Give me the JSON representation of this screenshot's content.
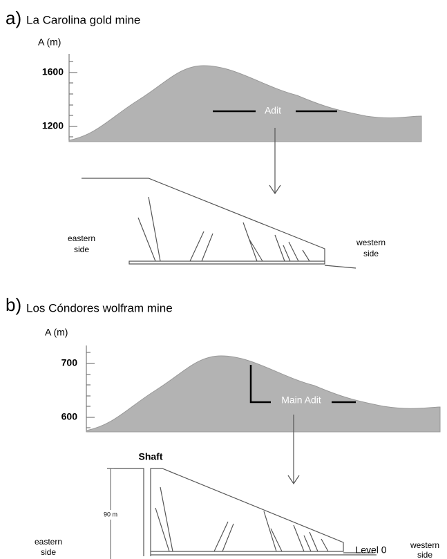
{
  "panels": [
    {
      "letter": "a)",
      "title": "La Carolina gold mine",
      "axis_label": "A (m)",
      "ticks": [
        1600,
        1200
      ],
      "adit": "Adit",
      "east": [
        "eastern",
        "side"
      ],
      "west": [
        "western",
        "side"
      ]
    },
    {
      "letter": "b)",
      "title": "Los Cóndores wolfram mine",
      "axis_label": "A (m)",
      "ticks": [
        700,
        600
      ],
      "adit": "Main Adit",
      "shaft": "Shaft",
      "depth": "90 m",
      "level": "Level 0",
      "east": [
        "eastern",
        "side"
      ],
      "west": [
        "western",
        "side"
      ]
    }
  ]
}
